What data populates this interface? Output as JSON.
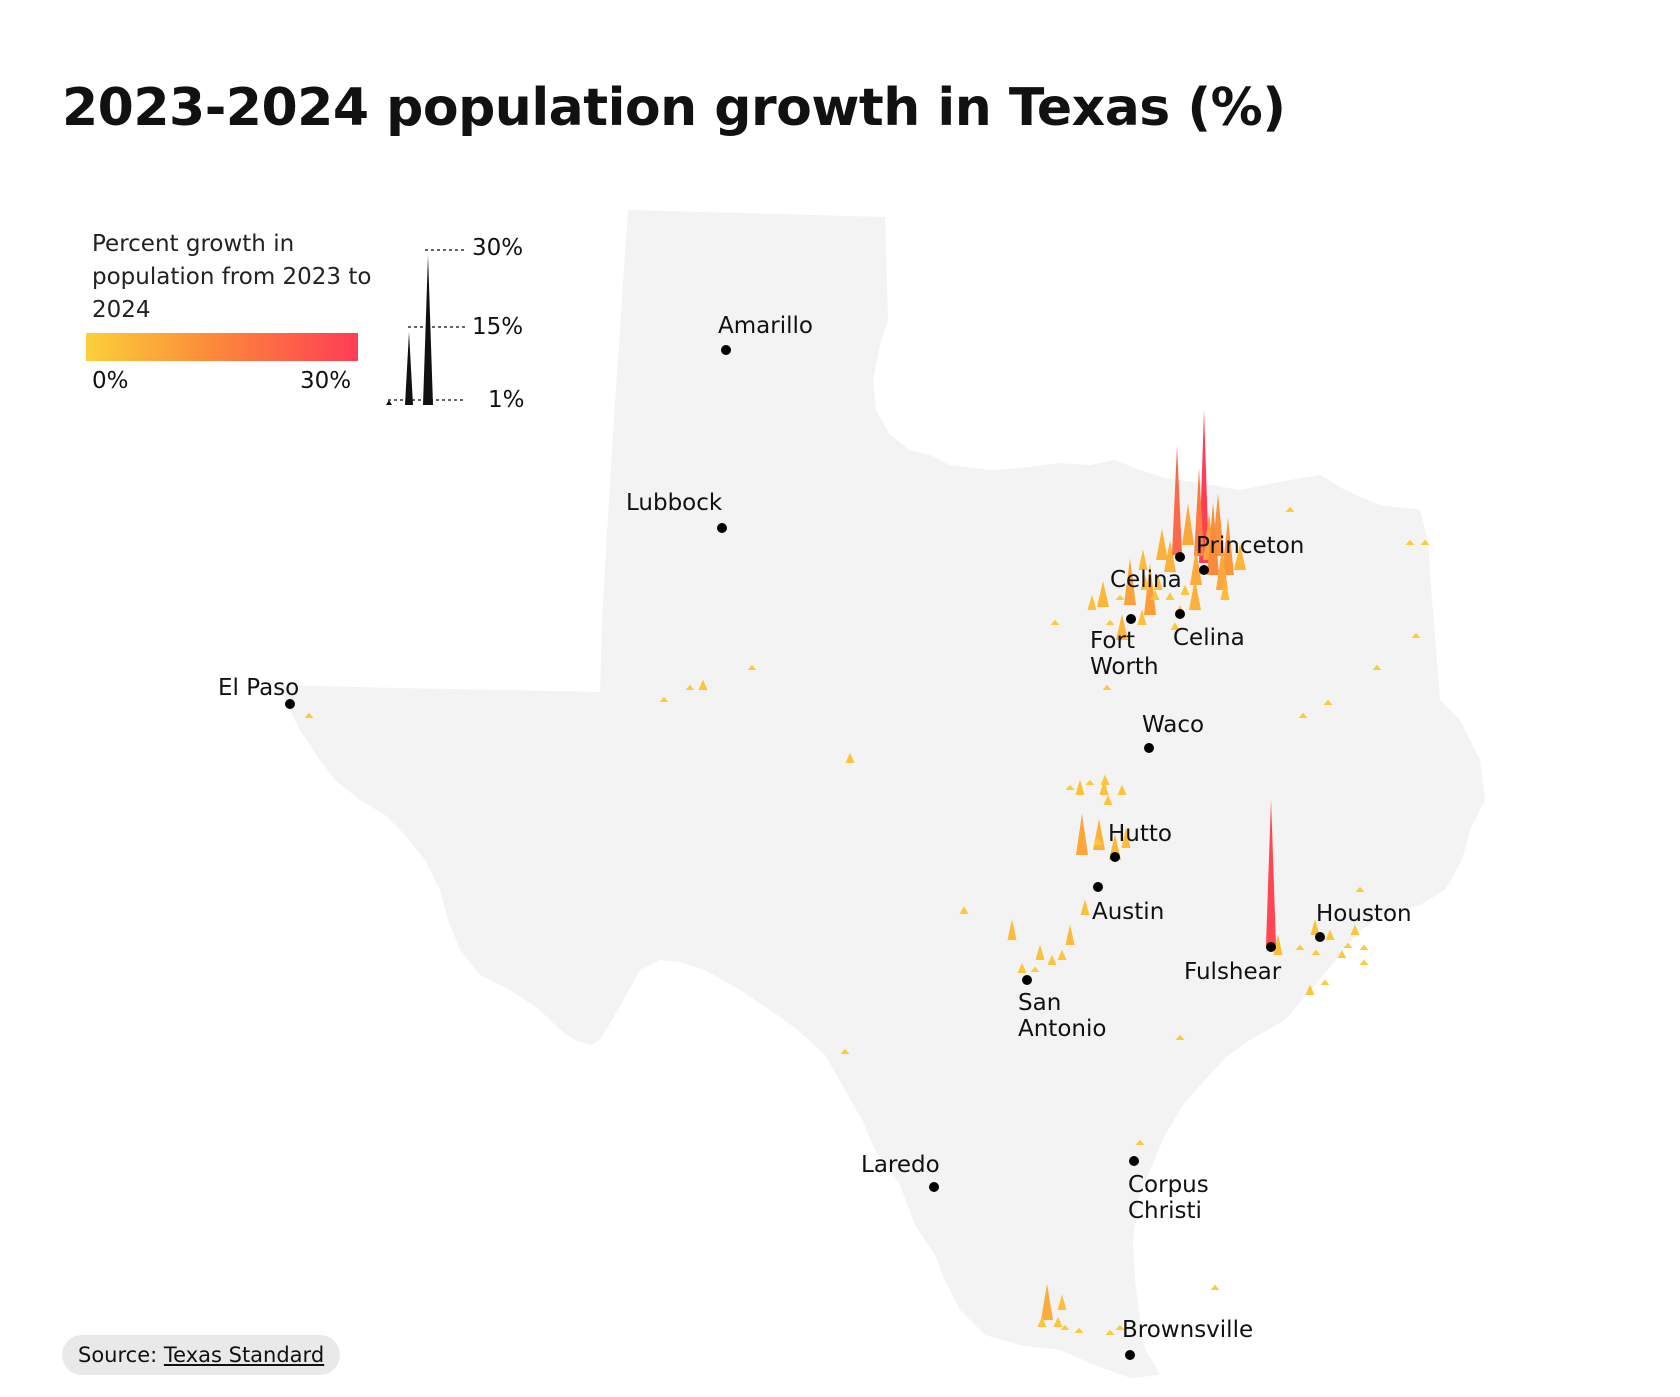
{
  "title": "2023-2024 population growth in Texas (%)",
  "legend": {
    "title": "Percent growth in population from 2023 to 2024",
    "color_min_label": "0%",
    "color_max_label": "30%",
    "scale_labels": [
      "30%",
      "15%",
      "1%"
    ],
    "scale_values": [
      30,
      15,
      1
    ],
    "gradient_colors": [
      "#fdcf3a",
      "#fc8c3a",
      "#ff3c55"
    ]
  },
  "cities": [
    {
      "name": "Amarillo",
      "lines": [
        "Amarillo"
      ]
    },
    {
      "name": "Lubbock",
      "lines": [
        "Lubbock"
      ]
    },
    {
      "name": "El Paso",
      "lines": [
        "El Paso"
      ]
    },
    {
      "name": "Princeton",
      "lines": [
        "Princeton"
      ]
    },
    {
      "name": "Celina (north)",
      "lines": [
        "Celina"
      ]
    },
    {
      "name": "Fort Worth",
      "lines": [
        "Fort",
        "Worth"
      ]
    },
    {
      "name": "Celina",
      "lines": [
        "Celina"
      ]
    },
    {
      "name": "Waco",
      "lines": [
        "Waco"
      ]
    },
    {
      "name": "Hutto",
      "lines": [
        "Hutto"
      ]
    },
    {
      "name": "Austin",
      "lines": [
        "Austin"
      ]
    },
    {
      "name": "Houston",
      "lines": [
        "Houston"
      ]
    },
    {
      "name": "Fulshear",
      "lines": [
        "Fulshear"
      ]
    },
    {
      "name": "San Antonio",
      "lines": [
        "San",
        "Antonio"
      ]
    },
    {
      "name": "Laredo",
      "lines": [
        "Laredo"
      ]
    },
    {
      "name": "Corpus Christi",
      "lines": [
        "Corpus",
        "Christi"
      ]
    },
    {
      "name": "Brownsville",
      "lines": [
        "Brownsville"
      ]
    }
  ],
  "spikes_growth_pct": [
    29.5,
    21,
    17,
    12,
    8,
    6,
    9,
    11,
    14,
    5,
    4,
    6,
    7,
    8,
    3,
    4,
    5,
    9,
    10,
    6,
    4,
    3,
    5,
    3,
    3,
    2,
    1.5,
    2,
    1,
    1,
    1.5,
    2,
    1,
    1,
    28,
    4,
    3,
    2,
    2,
    1,
    1.5,
    1,
    1,
    1,
    2,
    1,
    8,
    6,
    5,
    4,
    3,
    3,
    2,
    2,
    1.5,
    3,
    4,
    2,
    2,
    3,
    4,
    2,
    2,
    1,
    1,
    7,
    3,
    2,
    2,
    1,
    1,
    1,
    1,
    1,
    1,
    2,
    2,
    1.5,
    1,
    1,
    1,
    1,
    1,
    1,
    1,
    1,
    1,
    1,
    1,
    1,
    1,
    1,
    1
  ],
  "map_fill": "#f3f3f3",
  "source": {
    "label": "Source:",
    "link_text": "Texas Standard"
  }
}
